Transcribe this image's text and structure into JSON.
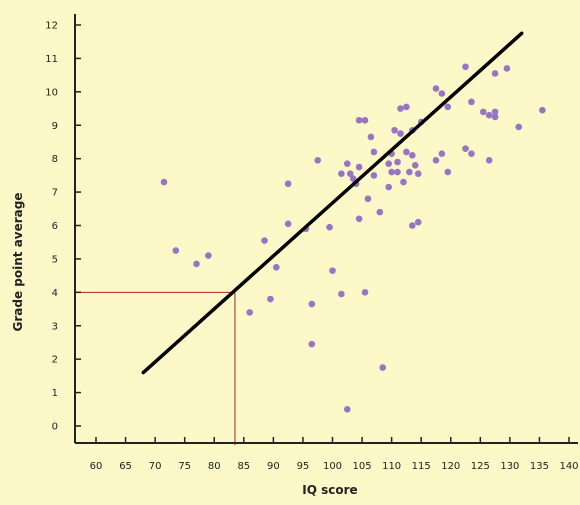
{
  "chart_data": {
    "type": "scatter",
    "xlabel": "IQ score",
    "ylabel": "Grade point average",
    "xlim": [
      60,
      140
    ],
    "ylim": [
      0,
      12
    ],
    "x_ticks": [
      "60",
      "65",
      "70",
      "75",
      "80",
      "85",
      "90",
      "95",
      "100",
      "105",
      "110",
      "115",
      "120",
      "125",
      "130",
      "135",
      "140"
    ],
    "y_ticks": [
      "0",
      "1",
      "2",
      "3",
      "4",
      "5",
      "6",
      "7",
      "8",
      "9",
      "10",
      "11",
      "12"
    ],
    "points": [
      {
        "x": 71.5,
        "y": 7.3
      },
      {
        "x": 73.5,
        "y": 5.25
      },
      {
        "x": 77,
        "y": 4.85
      },
      {
        "x": 79,
        "y": 5.1
      },
      {
        "x": 86,
        "y": 3.4
      },
      {
        "x": 88.5,
        "y": 5.55
      },
      {
        "x": 89.5,
        "y": 3.8
      },
      {
        "x": 90.5,
        "y": 4.75
      },
      {
        "x": 92.5,
        "y": 7.25
      },
      {
        "x": 92.5,
        "y": 6.05
      },
      {
        "x": 95.5,
        "y": 5.9
      },
      {
        "x": 96.5,
        "y": 3.65
      },
      {
        "x": 96.5,
        "y": 2.45
      },
      {
        "x": 97.5,
        "y": 7.95
      },
      {
        "x": 99.5,
        "y": 5.95
      },
      {
        "x": 100,
        "y": 4.65
      },
      {
        "x": 101.5,
        "y": 7.55
      },
      {
        "x": 101.5,
        "y": 3.95
      },
      {
        "x": 102.5,
        "y": 7.85
      },
      {
        "x": 102.5,
        "y": 0.5
      },
      {
        "x": 103,
        "y": 7.55
      },
      {
        "x": 103.5,
        "y": 7.4
      },
      {
        "x": 104,
        "y": 7.25
      },
      {
        "x": 104.5,
        "y": 7.75
      },
      {
        "x": 104.5,
        "y": 9.15
      },
      {
        "x": 104.5,
        "y": 6.2
      },
      {
        "x": 105.5,
        "y": 9.15
      },
      {
        "x": 105.5,
        "y": 4.0
      },
      {
        "x": 106,
        "y": 6.8
      },
      {
        "x": 106.5,
        "y": 8.65
      },
      {
        "x": 107,
        "y": 8.2
      },
      {
        "x": 107,
        "y": 7.5
      },
      {
        "x": 108,
        "y": 6.4
      },
      {
        "x": 108.5,
        "y": 1.75
      },
      {
        "x": 109.5,
        "y": 7.85
      },
      {
        "x": 109.5,
        "y": 7.15
      },
      {
        "x": 110,
        "y": 8.15
      },
      {
        "x": 110,
        "y": 7.6
      },
      {
        "x": 110.5,
        "y": 8.85
      },
      {
        "x": 111,
        "y": 7.9
      },
      {
        "x": 111,
        "y": 7.6
      },
      {
        "x": 111.5,
        "y": 9.5
      },
      {
        "x": 111.5,
        "y": 8.75
      },
      {
        "x": 112,
        "y": 7.3
      },
      {
        "x": 112.5,
        "y": 9.55
      },
      {
        "x": 112.5,
        "y": 8.2
      },
      {
        "x": 113,
        "y": 7.6
      },
      {
        "x": 113.5,
        "y": 8.85
      },
      {
        "x": 113.5,
        "y": 8.1
      },
      {
        "x": 113.5,
        "y": 6.0
      },
      {
        "x": 114,
        "y": 7.8
      },
      {
        "x": 114.5,
        "y": 7.55
      },
      {
        "x": 114.5,
        "y": 6.1
      },
      {
        "x": 115,
        "y": 9.1
      },
      {
        "x": 117.5,
        "y": 10.1
      },
      {
        "x": 117.5,
        "y": 7.95
      },
      {
        "x": 118.5,
        "y": 9.95
      },
      {
        "x": 118.5,
        "y": 8.15
      },
      {
        "x": 119.5,
        "y": 9.55
      },
      {
        "x": 119.5,
        "y": 7.6
      },
      {
        "x": 122.5,
        "y": 10.75
      },
      {
        "x": 122.5,
        "y": 8.3
      },
      {
        "x": 123.5,
        "y": 9.7
      },
      {
        "x": 123.5,
        "y": 8.15
      },
      {
        "x": 125.5,
        "y": 9.4
      },
      {
        "x": 126.5,
        "y": 9.3
      },
      {
        "x": 126.5,
        "y": 7.95
      },
      {
        "x": 127.5,
        "y": 10.55
      },
      {
        "x": 127.5,
        "y": 9.4
      },
      {
        "x": 127.5,
        "y": 9.25
      },
      {
        "x": 129.5,
        "y": 10.7
      },
      {
        "x": 131.5,
        "y": 8.95
      },
      {
        "x": 135.5,
        "y": 9.45
      }
    ],
    "regression_line": {
      "x": [
        68,
        132
      ],
      "y": [
        1.6,
        11.75
      ]
    },
    "reference_lines": {
      "x": 83.5,
      "y": 4.0
    },
    "grid": false,
    "legend": "none"
  },
  "colors": {
    "background": "#fcf8c8",
    "point": "#9a74c4",
    "regression_line": "#000000",
    "reference_lines": "#b0202a",
    "axis": "#222222"
  }
}
